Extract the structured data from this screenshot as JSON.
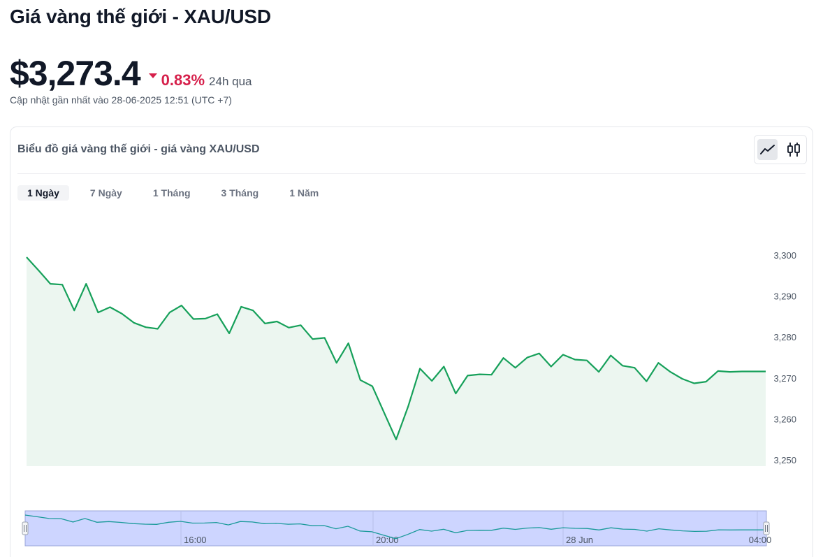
{
  "header": {
    "title": "Giá vàng thế giới - XAU/USD",
    "price": "$3,273.4",
    "change_pct": "0.83%",
    "change_period": "24h qua",
    "updated": "Cập nhật gần nhất vào 28-06-2025 12:51 (UTC +7)"
  },
  "card": {
    "title": "Biểu đồ giá vàng thế giới - giá vàng XAU/USD",
    "chart_types": [
      {
        "name": "line-chart-icon",
        "active": true
      },
      {
        "name": "candlestick-icon",
        "active": false
      }
    ],
    "tabs": [
      {
        "label": "1 Ngày",
        "active": true
      },
      {
        "label": "7 Ngày",
        "active": false
      },
      {
        "label": "1 Tháng",
        "active": false
      },
      {
        "label": "3 Tháng",
        "active": false
      },
      {
        "label": "1 Năm",
        "active": false
      }
    ]
  },
  "colors": {
    "line": "#16a05a",
    "area": "#ecf6f0",
    "down": "#d6204b",
    "navigator_fill": "#cdd5ff",
    "navigator_line": "#1a9a9a"
  },
  "chart_data": {
    "type": "area",
    "ylim": [
      3250,
      3300
    ],
    "yticks": [
      "3,300",
      "3,290",
      "3,280",
      "3,270",
      "3,260",
      "3,250"
    ],
    "ytick_values": [
      3300,
      3290,
      3280,
      3270,
      3260,
      3250
    ],
    "values": [
      3300.0,
      3296.8,
      3293.5,
      3293.3,
      3287.0,
      3293.5,
      3286.5,
      3287.8,
      3286.2,
      3284.0,
      3282.9,
      3282.5,
      3286.5,
      3288.2,
      3284.9,
      3285.0,
      3286.1,
      3281.4,
      3287.9,
      3287.0,
      3283.8,
      3284.3,
      3282.8,
      3283.4,
      3280.0,
      3280.3,
      3274.2,
      3279.0,
      3270.0,
      3268.5,
      3262.0,
      3255.5,
      3263.5,
      3272.8,
      3269.8,
      3273.3,
      3266.7,
      3271.1,
      3271.4,
      3271.3,
      3275.4,
      3273.0,
      3275.5,
      3276.5,
      3273.3,
      3276.2,
      3275.0,
      3274.8,
      3272.0,
      3276.0,
      3273.5,
      3273.0,
      3269.7,
      3274.2,
      3272.0,
      3270.3,
      3269.2,
      3269.6,
      3272.2,
      3272.0,
      3272.1,
      3272.1,
      3272.1
    ],
    "navigator": {
      "x_labels": [
        "16:00",
        "20:00",
        "28 Jun",
        "04:00"
      ]
    }
  }
}
